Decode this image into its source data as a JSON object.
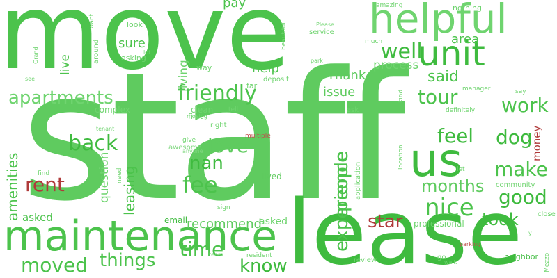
{
  "words": {
    "move": "move",
    "staff": "staff",
    "lease": "lease",
    "maintenance": "maintenance",
    "helpful": "helpful",
    "unit": "unit",
    "us": "us",
    "friendly": "friendly",
    "apartments": "apartments",
    "well": "well",
    "love": "love",
    "fee": "fee",
    "nan": "nan",
    "rent": "rent",
    "back": "back",
    "tour": "tour",
    "work": "work",
    "feel": "feel",
    "dog": "dog",
    "make": "make",
    "months": "months",
    "good": "good",
    "nice": "nice",
    "took": "took",
    "star": "star",
    "people": "people",
    "experience": "experience",
    "leasing": "leasing",
    "amenities": "amenities",
    "moved": "moved",
    "things": "things",
    "time": "time",
    "know": "know",
    "recommend": "recommend",
    "question": "question",
    "said": "said",
    "issue": "issue",
    "Thank": "Thank",
    "process": "process",
    "area": "area",
    "help": "help",
    "sure": "sure",
    "living": "living",
    "live": "live",
    "look": "look",
    "pay": "pay",
    "money": "money",
    "asked": "asked",
    "email": "email",
    "clean": "clean",
    "lived": "lived",
    "complex": "complex",
    "professional": "professional",
    "community": "community",
    "amazing": "amazing",
    "nothing": "nothing",
    "Please": "Please",
    "service": "service",
    "much": "much",
    "park": "park",
    "deposit": "deposit",
    "far": "far",
    "way": "way",
    "first": "first",
    "right": "right",
    "moving": "moving",
    "give": "give",
    "awesome": "awesome",
    "anyone": "anyone",
    "tell": "tell",
    "multiple": "multiple",
    "ask": "ask",
    "manager": "manager",
    "definitely": "definitely",
    "say": "say",
    "let": "let",
    "kind": "kind",
    "location": "location",
    "application": "application",
    "close": "close",
    "parking": "parking",
    "neighbor": "neighbor",
    "review": "review",
    "go": "go",
    "walk": "walk",
    "resident": "resident",
    "team": "team",
    "sign": "sign",
    "need": "need",
    "find": "find",
    "tenant": "tenant",
    "see": "see",
    "Grand": "Grand",
    "around": "around",
    "want": "want",
    "lot": "lot",
    "asking": "asking",
    "beautiful": "beautiful",
    "y": "y",
    "Mezzo": "Mezzo"
  }
}
